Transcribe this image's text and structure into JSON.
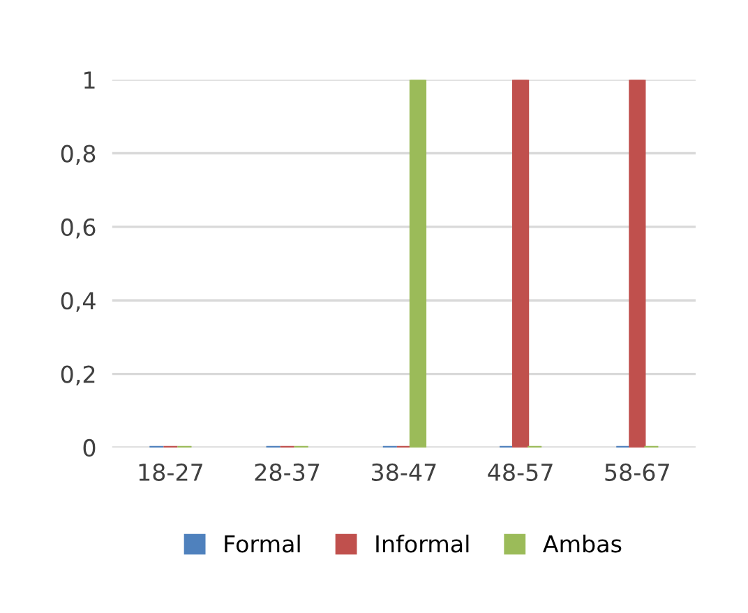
{
  "chart_data": {
    "type": "bar",
    "categories": [
      "18-27",
      "28-37",
      "38-47",
      "48-57",
      "58-67"
    ],
    "series": [
      {
        "name": "Formal",
        "color": "#4f81bd",
        "values": [
          0,
          0,
          0,
          0,
          0
        ]
      },
      {
        "name": "Informal",
        "color": "#c0504d",
        "values": [
          0,
          0,
          0,
          1,
          1
        ]
      },
      {
        "name": "Ambas",
        "color": "#9bbb59",
        "values": [
          0,
          0,
          1,
          0,
          0
        ]
      }
    ],
    "ylim": [
      0,
      1
    ],
    "yticks": [
      0,
      {
        "value": 0.2,
        "label": "0,2"
      },
      {
        "value": 0.4,
        "label": "0,4"
      },
      {
        "value": 0.6,
        "label": "0,6"
      },
      {
        "value": 0.8,
        "label": "0,8"
      },
      1
    ],
    "grid": "y",
    "legend": "bottom"
  }
}
